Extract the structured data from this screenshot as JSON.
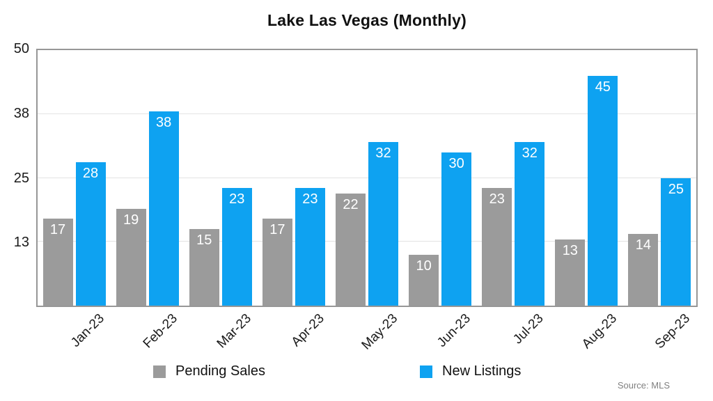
{
  "title": "Lake Las Vegas (Monthly)",
  "source_note": "Source: MLS",
  "legend": [
    {
      "label": "Pending Sales",
      "color": "#9b9b9b"
    },
    {
      "label": "New Listings",
      "color": "#0ea2f1"
    }
  ],
  "colors": {
    "pending_sales": "#9b9b9b",
    "new_listings": "#0ea2f1",
    "gridline": "#e3e3e3",
    "plot_border": "#979797",
    "value_label": "#ffffff"
  },
  "chart_data": {
    "type": "bar",
    "title": "Lake Las Vegas (Monthly)",
    "categories": [
      "Jan-23",
      "Feb-23",
      "Mar-23",
      "Apr-23",
      "May-23",
      "Jun-23",
      "Jul-23",
      "Aug-23",
      "Sep-23"
    ],
    "series": [
      {
        "name": "Pending Sales",
        "color": "#9b9b9b",
        "values": [
          17,
          19,
          15,
          17,
          22,
          10,
          23,
          13,
          14
        ]
      },
      {
        "name": "New Listings",
        "color": "#0ea2f1",
        "values": [
          28,
          38,
          23,
          23,
          32,
          30,
          32,
          45,
          25
        ]
      }
    ],
    "xlabel": "",
    "ylabel": "",
    "ylim": [
      0,
      50
    ],
    "y_ticks": [
      {
        "value": 50,
        "label": "50"
      },
      {
        "value": 37.5,
        "label": "38"
      },
      {
        "value": 25,
        "label": "25"
      },
      {
        "value": 12.5,
        "label": "13"
      }
    ],
    "grid": true,
    "legend_position": "bottom",
    "value_labels": "inside-top",
    "source": "Source: MLS"
  }
}
